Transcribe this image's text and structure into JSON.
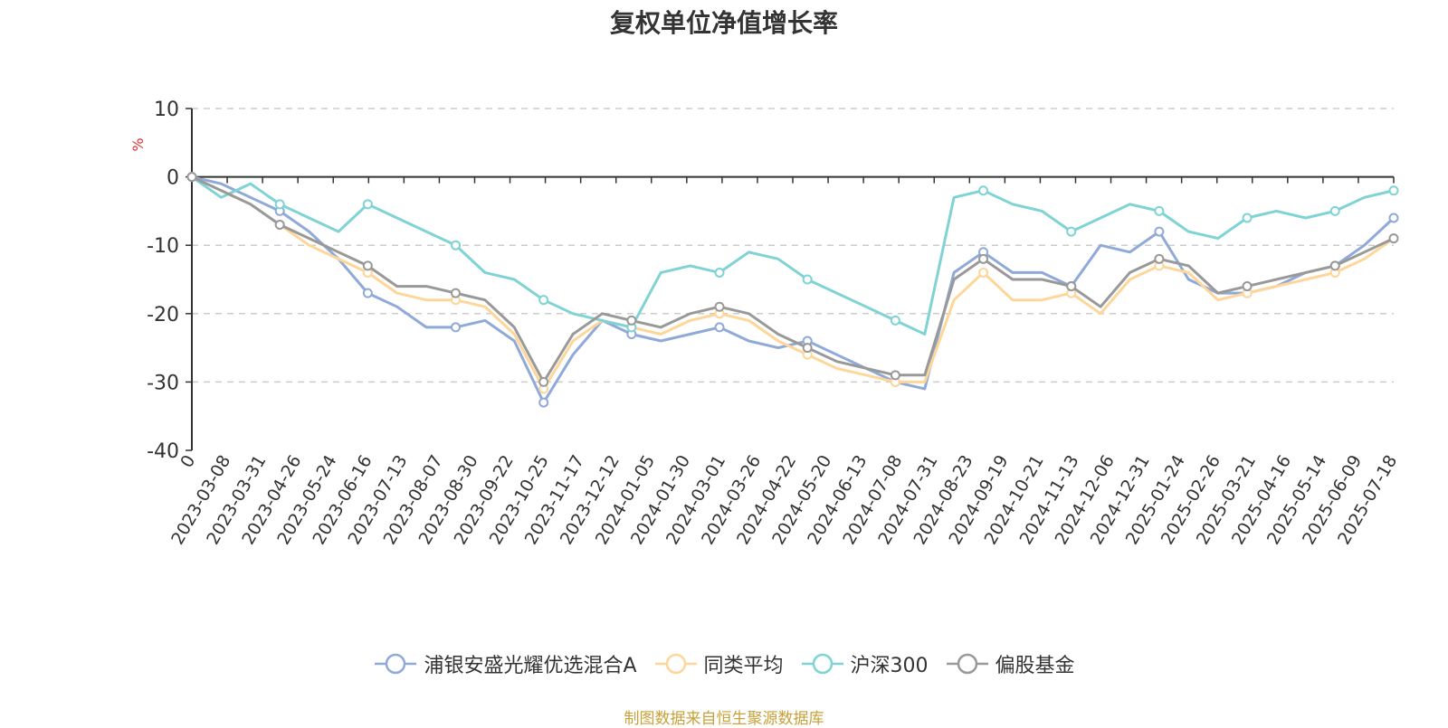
{
  "title": "复权单位净值增长率",
  "source": "制图数据来自恒生聚源数据库",
  "colors": {
    "axis": "#333333",
    "grid": "#cccccc",
    "unit": "#e03030"
  },
  "chart_data": {
    "type": "line",
    "title": "复权单位净值增长率",
    "ylabel": "%",
    "ylim": [
      -40,
      10
    ],
    "yticks": [
      10,
      0,
      -10,
      -20,
      -30,
      -40
    ],
    "grid": true,
    "legend_position": "bottom-center",
    "x_tick_labels": [
      "0",
      "2023-03-08",
      "2023-03-31",
      "2023-04-26",
      "2023-05-24",
      "2023-06-16",
      "2023-07-13",
      "2023-08-07",
      "2023-08-30",
      "2023-09-22",
      "2023-10-25",
      "2023-11-17",
      "2023-12-12",
      "2024-01-05",
      "2024-01-30",
      "2024-03-01",
      "2024-03-26",
      "2024-04-22",
      "2024-05-20",
      "2024-06-13",
      "2024-07-08",
      "2024-07-31",
      "2024-08-23",
      "2024-09-19",
      "2024-10-21",
      "2024-11-13",
      "2024-12-06",
      "2024-12-31",
      "2025-01-24",
      "2025-02-26",
      "2025-03-21",
      "2025-04-16",
      "2025-05-14",
      "2025-06-09",
      "2025-07-18"
    ],
    "series": [
      {
        "name": "浦银安盛光耀优选混合A",
        "color": "#8fa9d9",
        "values": [
          0,
          -1,
          -3,
          -5,
          -8,
          -12,
          -17,
          -19,
          -22,
          -22,
          -21,
          -24,
          -33,
          -26,
          -21,
          -23,
          -24,
          -23,
          -22,
          -24,
          -25,
          -24,
          -26,
          -28,
          -30,
          -31,
          -14,
          -11,
          -14,
          -14,
          -16,
          -10,
          -11,
          -8,
          -15,
          -17,
          -17,
          -16,
          -14,
          -13,
          -10,
          -6
        ]
      },
      {
        "name": "同类平均",
        "color": "#ffd699",
        "values": [
          0,
          -2,
          -4,
          -7,
          -10,
          -12,
          -14,
          -17,
          -18,
          -18,
          -19,
          -23,
          -31,
          -24,
          -21,
          -22,
          -23,
          -21,
          -20,
          -21,
          -24,
          -26,
          -28,
          -29,
          -30,
          -30,
          -18,
          -14,
          -18,
          -18,
          -17,
          -20,
          -15,
          -13,
          -14,
          -18,
          -17,
          -16,
          -15,
          -14,
          -12,
          -9
        ]
      },
      {
        "name": "沪深300",
        "color": "#7fd3d4",
        "values": [
          0,
          -3,
          -1,
          -4,
          -6,
          -8,
          -4,
          -6,
          -8,
          -10,
          -14,
          -15,
          -18,
          -20,
          -21,
          -22,
          -14,
          -13,
          -14,
          -11,
          -12,
          -15,
          -17,
          -19,
          -21,
          -23,
          -3,
          -2,
          -4,
          -5,
          -8,
          -6,
          -4,
          -5,
          -8,
          -9,
          -6,
          -5,
          -6,
          -5,
          -3,
          -2
        ]
      },
      {
        "name": "偏股基金",
        "color": "#999999",
        "values": [
          0,
          -2,
          -4,
          -7,
          -9,
          -11,
          -13,
          -16,
          -16,
          -17,
          -18,
          -22,
          -30,
          -23,
          -20,
          -21,
          -22,
          -20,
          -19,
          -20,
          -23,
          -25,
          -27,
          -28,
          -29,
          -29,
          -15,
          -12,
          -15,
          -15,
          -16,
          -19,
          -14,
          -12,
          -13,
          -17,
          -16,
          -15,
          -14,
          -13,
          -11,
          -9
        ]
      }
    ]
  }
}
